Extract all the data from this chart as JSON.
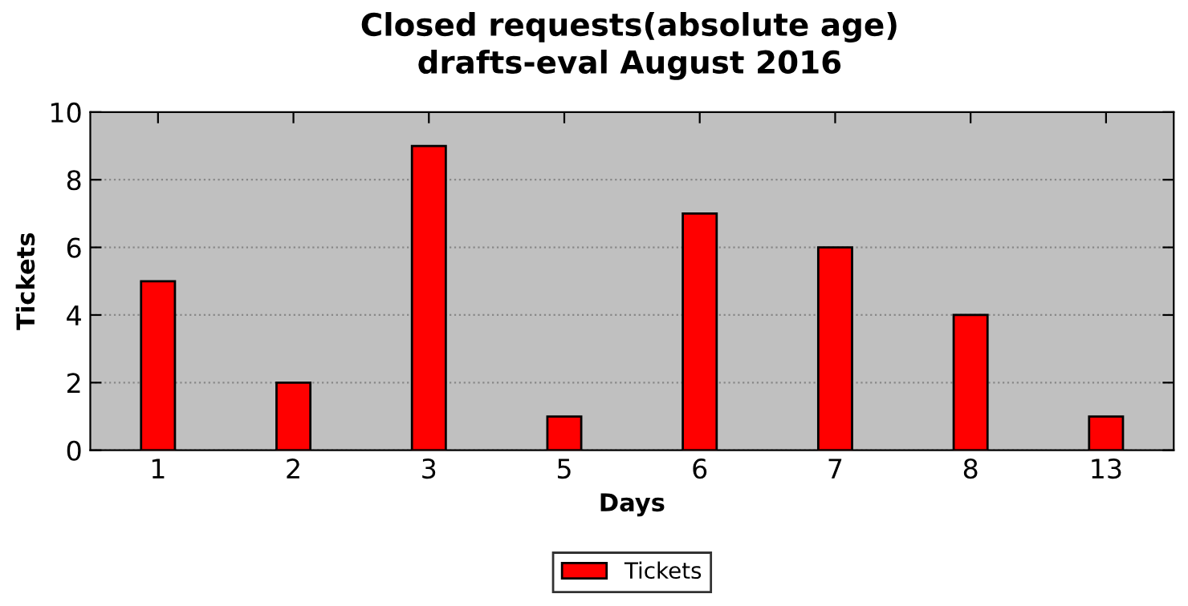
{
  "chart_data": {
    "type": "bar",
    "title": "Closed requests(absolute age)",
    "subtitle": "drafts-eval August 2016",
    "xlabel": "Days",
    "ylabel": "Tickets",
    "categories": [
      "1",
      "2",
      "3",
      "5",
      "6",
      "7",
      "8",
      "13"
    ],
    "series": [
      {
        "name": "Tickets",
        "color": "#ff0000",
        "values": [
          5,
          2,
          9,
          1,
          7,
          6,
          4,
          1
        ]
      }
    ],
    "ylim": [
      0,
      10
    ],
    "yticks": [
      0,
      2,
      4,
      6,
      8,
      10
    ],
    "grid": "y",
    "legend": "bottom"
  }
}
